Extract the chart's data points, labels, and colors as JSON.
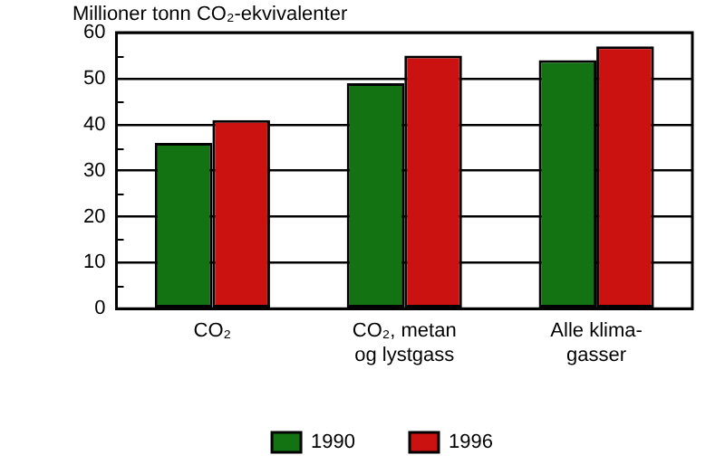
{
  "chart_data": {
    "type": "bar",
    "ylabel": "Millioner tonn CO₂-ekvivalenter",
    "categories": [
      "CO₂",
      "CO₂, metan og lystgass",
      "Alle klima-gasser"
    ],
    "series": [
      {
        "name": "1990",
        "color": "#137313",
        "values": [
          36,
          49,
          54
        ]
      },
      {
        "name": "1996",
        "color": "#cc1111",
        "values": [
          41,
          55,
          57
        ]
      }
    ],
    "ylim": [
      0,
      60
    ],
    "yticks": [
      0,
      {
        "value": 5,
        "label": null
      },
      10,
      {
        "value": 15,
        "label": null
      },
      20,
      {
        "value": 25,
        "label": null
      },
      30,
      {
        "value": 35,
        "label": null
      },
      40,
      {
        "value": 45,
        "label": null
      },
      50,
      {
        "value": 55,
        "label": null
      },
      60
    ],
    "grid": "y",
    "legend": "bottom"
  }
}
